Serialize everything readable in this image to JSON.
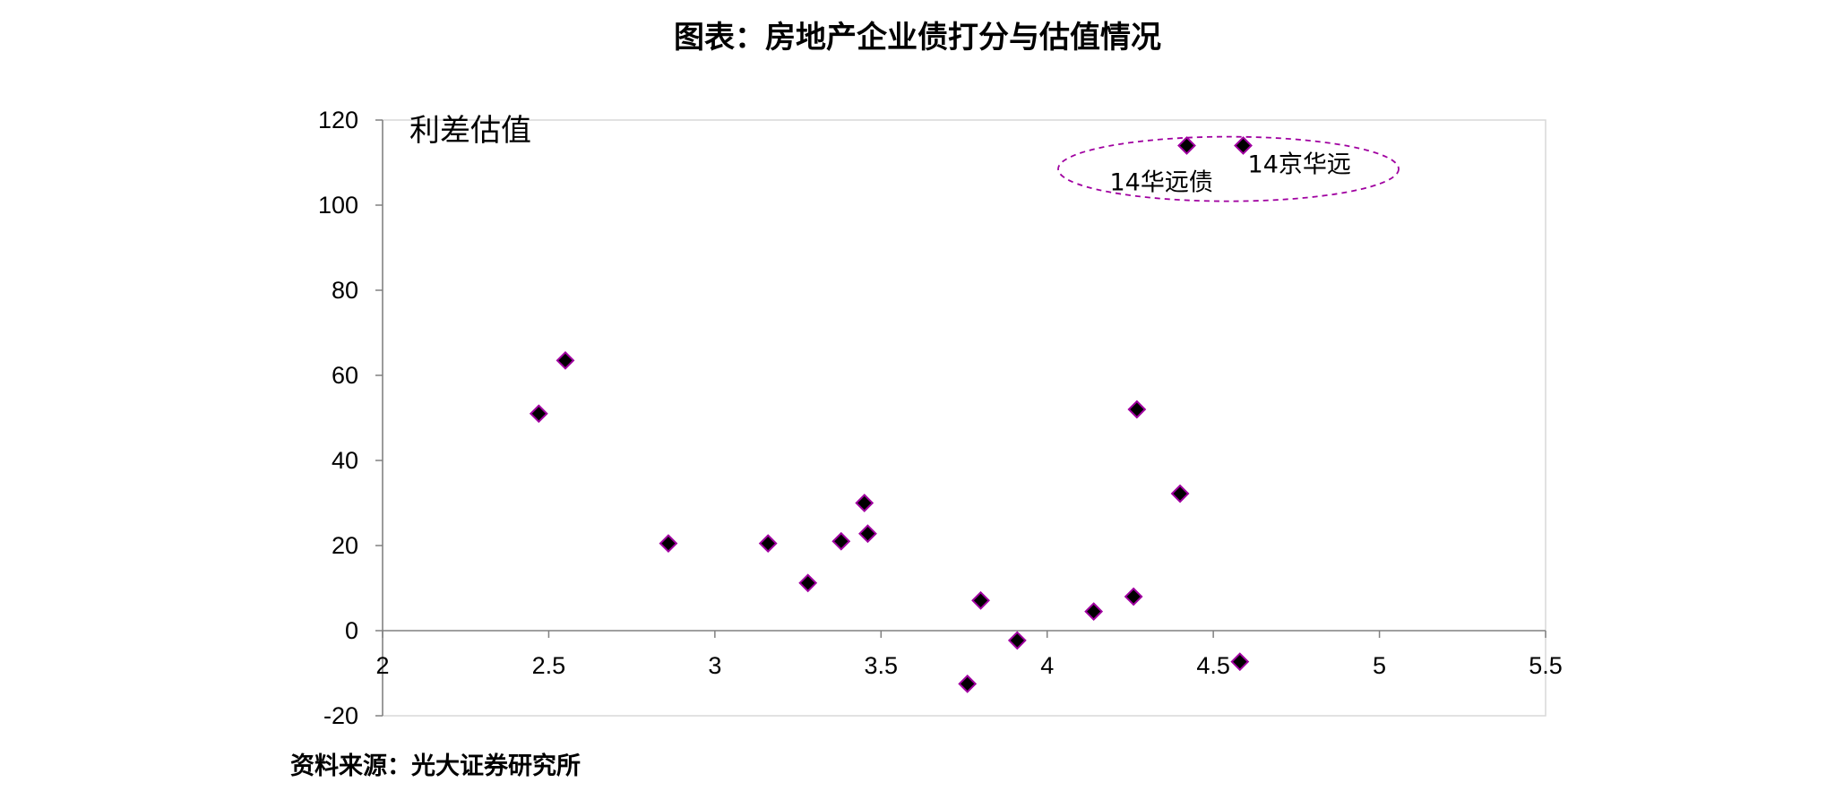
{
  "title": "图表：房地产企业债打分与估值情况",
  "source": "资料来源：光大证券研究所",
  "chart_data": {
    "type": "scatter",
    "ylabel": "利差估值",
    "xlabel": "",
    "xlim": [
      2,
      5.5
    ],
    "ylim": [
      -20,
      120
    ],
    "xticks": [
      "2",
      "2.5",
      "3",
      "3.5",
      "4",
      "4.5",
      "5",
      "5.5"
    ],
    "yticks": [
      "120",
      "100",
      "80",
      "60",
      "40",
      "20",
      "0",
      "-20"
    ],
    "grid": false,
    "marker_color": "#000000",
    "marker_edge_color": "#a000a0",
    "points": [
      {
        "x": 2.47,
        "y": 51
      },
      {
        "x": 2.55,
        "y": 63.5
      },
      {
        "x": 2.86,
        "y": 20.5
      },
      {
        "x": 3.16,
        "y": 20.5
      },
      {
        "x": 3.28,
        "y": 11.2
      },
      {
        "x": 3.38,
        "y": 21
      },
      {
        "x": 3.45,
        "y": 30
      },
      {
        "x": 3.46,
        "y": 22.8
      },
      {
        "x": 3.76,
        "y": -12.5
      },
      {
        "x": 3.8,
        "y": 7.1
      },
      {
        "x": 3.91,
        "y": -2.3
      },
      {
        "x": 4.14,
        "y": 4.5
      },
      {
        "x": 4.26,
        "y": 8
      },
      {
        "x": 4.27,
        "y": 52
      },
      {
        "x": 4.4,
        "y": 32.2
      },
      {
        "x": 4.42,
        "y": 114
      },
      {
        "x": 4.58,
        "y": -7.3
      },
      {
        "x": 4.59,
        "y": 114
      }
    ],
    "annotations": [
      {
        "text": "14华远债",
        "x": 4.42,
        "y": 114
      },
      {
        "text": "14京华远",
        "x": 4.59,
        "y": 114
      }
    ],
    "highlight_color": "#a000a0"
  }
}
